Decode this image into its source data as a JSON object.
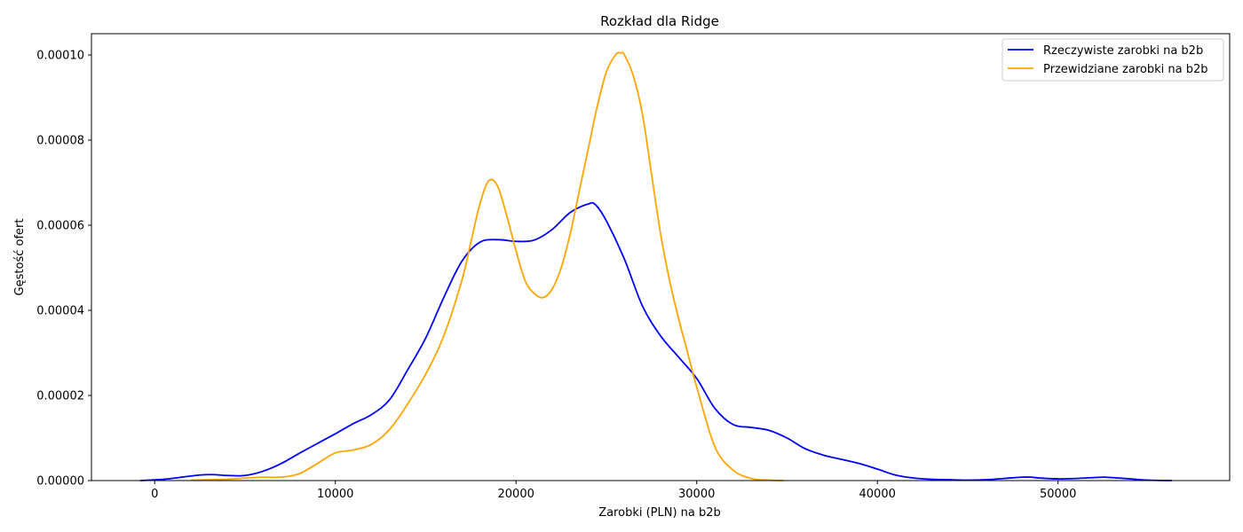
{
  "chart_data": {
    "type": "line",
    "title": "Rozkład dla Ridge",
    "xlabel": "Zarobki (PLN) na b2b",
    "ylabel": "Gęstość ofert",
    "xlim": [
      -3500,
      59500
    ],
    "ylim": [
      0,
      0.000105
    ],
    "x_ticks": [
      0,
      10000,
      20000,
      30000,
      40000,
      50000
    ],
    "x_tick_labels": [
      "0",
      "10000",
      "20000",
      "30000",
      "40000",
      "50000"
    ],
    "y_ticks": [
      0,
      2e-05,
      4e-05,
      6e-05,
      8e-05,
      0.0001
    ],
    "y_tick_labels": [
      "0.00000",
      "0.00002",
      "0.00004",
      "0.00006",
      "0.00008",
      "0.00010"
    ],
    "grid": false,
    "legend_position": "top-right",
    "series": [
      {
        "name": "Rzeczywiste zarobki na b2b",
        "color": "#0000ff",
        "x": [
          -800,
          500,
          1500,
          2500,
          3200,
          4000,
          5000,
          6000,
          7000,
          8000,
          9000,
          10000,
          11000,
          12000,
          13000,
          14000,
          15000,
          16000,
          17000,
          18000,
          19000,
          20000,
          21000,
          22000,
          23000,
          24000,
          24400,
          25000,
          26000,
          27000,
          28000,
          29000,
          30000,
          31000,
          32000,
          33000,
          34000,
          35000,
          36000,
          37000,
          38000,
          39000,
          40000,
          41000,
          42000,
          43000,
          44000,
          45000,
          46000,
          47000,
          48000,
          48500,
          49000,
          50000,
          51000,
          52000,
          52500,
          53000,
          54000,
          55000,
          56300
        ],
        "values": [
          0.0,
          3e-07,
          8e-07,
          1.3e-06,
          1.4e-06,
          1.2e-06,
          1.2e-06,
          2.2e-06,
          4e-06,
          6.4e-06,
          8.7e-06,
          1.1e-05,
          1.34e-05,
          1.55e-05,
          1.9e-05,
          2.6e-05,
          3.35e-05,
          4.3e-05,
          5.15e-05,
          5.6e-05,
          5.66e-05,
          5.62e-05,
          5.65e-05,
          5.9e-05,
          6.3e-05,
          6.5e-05,
          6.48e-05,
          6.1e-05,
          5.2e-05,
          4.1e-05,
          3.4e-05,
          2.9e-05,
          2.4e-05,
          1.7e-05,
          1.32e-05,
          1.25e-05,
          1.18e-05,
          1e-05,
          7.5e-06,
          6e-06,
          5e-06,
          4e-06,
          2.7e-06,
          1.3e-06,
          6e-07,
          3e-07,
          2e-07,
          1e-07,
          2e-07,
          5e-07,
          8e-07,
          8e-07,
          6e-07,
          4e-07,
          5e-07,
          7e-07,
          8e-07,
          7e-07,
          4e-07,
          1e-07,
          0.0
        ]
      },
      {
        "name": "Przewidziane zarobki na b2b",
        "color": "#ffa500",
        "x": [
          2000,
          4000,
          5000,
          6000,
          7000,
          8000,
          9000,
          10000,
          11000,
          12000,
          13000,
          14000,
          15000,
          16000,
          17000,
          17500,
          18000,
          18500,
          19000,
          19500,
          20000,
          20500,
          21000,
          21500,
          22000,
          22500,
          23000,
          23500,
          24000,
          24500,
          25000,
          25500,
          25800,
          26000,
          26500,
          27000,
          27500,
          28000,
          28500,
          29000,
          29500,
          30000,
          31000,
          32000,
          33000,
          34000,
          34800
        ],
        "values": [
          1e-07,
          3e-07,
          6e-07,
          8e-07,
          8e-07,
          1.6e-06,
          4e-06,
          6.5e-06,
          7.2e-06,
          8.5e-06,
          1.2e-05,
          1.8e-05,
          2.5e-05,
          3.4e-05,
          4.7e-05,
          5.6e-05,
          6.5e-05,
          7.05e-05,
          6.9e-05,
          6.2e-05,
          5.4e-05,
          4.7e-05,
          4.4e-05,
          4.3e-05,
          4.5e-05,
          5e-05,
          5.8e-05,
          6.8e-05,
          7.8e-05,
          8.8e-05,
          9.6e-05,
          0.0001,
          0.0001005,
          0.0001,
          9.5e-05,
          8.6e-05,
          7.2e-05,
          5.8e-05,
          4.7e-05,
          3.8e-05,
          3e-05,
          2.2e-05,
          8e-06,
          2.5e-06,
          5e-07,
          1e-07,
          0.0
        ]
      }
    ]
  }
}
